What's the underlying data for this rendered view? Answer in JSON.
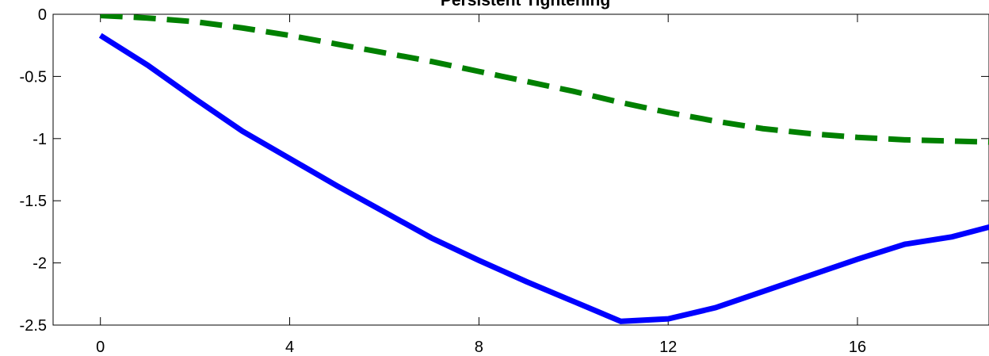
{
  "chart_data": {
    "type": "line",
    "title": "Persistent Tightening",
    "x": [
      0,
      1,
      2,
      3,
      4,
      5,
      6,
      7,
      8,
      9,
      10,
      11,
      12,
      13,
      14,
      15,
      16,
      17,
      18,
      19
    ],
    "series": [
      {
        "color": "#0000ff",
        "style": "solid",
        "values": [
          -0.17,
          -0.41,
          -0.68,
          -0.94,
          -1.16,
          -1.38,
          -1.59,
          -1.8,
          -1.98,
          -2.15,
          -2.31,
          -2.47,
          -2.45,
          -2.36,
          -2.23,
          -2.1,
          -1.97,
          -1.85,
          -1.79,
          -1.69
        ]
      },
      {
        "color": "#008000",
        "style": "dashed",
        "values": [
          -0.01,
          -0.03,
          -0.06,
          -0.11,
          -0.17,
          -0.24,
          -0.31,
          -0.38,
          -0.46,
          -0.54,
          -0.62,
          -0.71,
          -0.79,
          -0.86,
          -0.92,
          -0.96,
          -0.99,
          -1.01,
          -1.02,
          -1.03
        ]
      }
    ],
    "xlim": [
      -1,
      18.78
    ],
    "xticks": [
      0,
      4,
      8,
      12,
      16
    ],
    "ylim": [
      -2.5,
      0
    ],
    "yticks": [
      -2.5,
      -2,
      -1.5,
      -1,
      -0.5,
      0
    ],
    "grid": false
  }
}
